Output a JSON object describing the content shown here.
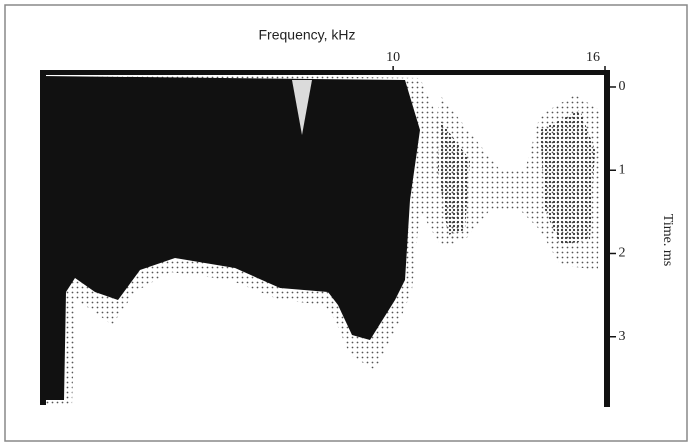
{
  "chart_data": {
    "type": "spectrogram",
    "x_label": "Frequency, kHz",
    "y_label": "Time. ms",
    "xlim": [
      0,
      16
    ],
    "xticks": [
      10,
      16
    ],
    "ylim": [
      -0.18,
      3.82
    ],
    "yticks": [
      0,
      1,
      2,
      3
    ],
    "y_inverted": true,
    "color": "#111111"
  }
}
